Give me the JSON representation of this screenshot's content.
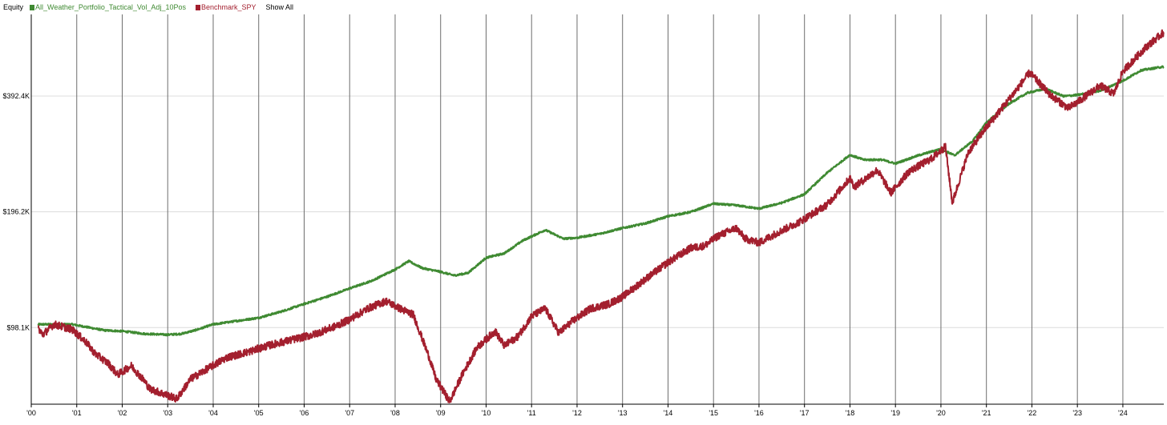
{
  "legend": {
    "title": "Equity",
    "show_all_label": "Show All",
    "entries": [
      {
        "name": "All_Weather_Portfolio_Tactical_Vol_Adj_10Pos",
        "color": "#3f8a32"
      },
      {
        "name": "Benchmark_SPY",
        "color": "#a31f2e"
      }
    ]
  },
  "chart_data": {
    "type": "line",
    "title": "",
    "xlabel": "",
    "ylabel": "",
    "y_scale": "log",
    "ylim": [
      62000,
      640000
    ],
    "xlim": [
      2000.0,
      2024.9
    ],
    "y_ticks": [
      {
        "value": 98100,
        "label": "$98.1K"
      },
      {
        "value": 196200,
        "label": "$196.2K"
      },
      {
        "value": 392400,
        "label": "$392.4K"
      }
    ],
    "x_ticks": [
      {
        "value": 2000,
        "label": "'00"
      },
      {
        "value": 2001,
        "label": "'01"
      },
      {
        "value": 2002,
        "label": "'02"
      },
      {
        "value": 2003,
        "label": "'03"
      },
      {
        "value": 2004,
        "label": "'04"
      },
      {
        "value": 2005,
        "label": "'05"
      },
      {
        "value": 2006,
        "label": "'06"
      },
      {
        "value": 2007,
        "label": "'07"
      },
      {
        "value": 2008,
        "label": "'08"
      },
      {
        "value": 2009,
        "label": "'09"
      },
      {
        "value": 2010,
        "label": "'10"
      },
      {
        "value": 2011,
        "label": "'11"
      },
      {
        "value": 2012,
        "label": "'12"
      },
      {
        "value": 2013,
        "label": "'13"
      },
      {
        "value": 2014,
        "label": "'14"
      },
      {
        "value": 2015,
        "label": "'15"
      },
      {
        "value": 2016,
        "label": "'16"
      },
      {
        "value": 2017,
        "label": "'17"
      },
      {
        "value": 2018,
        "label": "'18"
      },
      {
        "value": 2019,
        "label": "'19"
      },
      {
        "value": 2020,
        "label": "'20"
      },
      {
        "value": 2021,
        "label": "'21"
      },
      {
        "value": 2022,
        "label": "'22"
      },
      {
        "value": 2023,
        "label": "'23"
      },
      {
        "value": 2024,
        "label": "'24"
      }
    ],
    "grid": {
      "vertical": true,
      "horizontal": true
    },
    "legend_position": "top-left",
    "series": [
      {
        "name": "All_Weather_Portfolio_Tactical_Vol_Adj_10Pos",
        "color": "#3f8a32",
        "points": [
          [
            2000.15,
            100000
          ],
          [
            2000.5,
            100000
          ],
          [
            2000.9,
            100000
          ],
          [
            2001.2,
            98500
          ],
          [
            2001.6,
            96500
          ],
          [
            2002.0,
            96000
          ],
          [
            2002.5,
            94500
          ],
          [
            2003.0,
            94000
          ],
          [
            2003.3,
            94500
          ],
          [
            2003.6,
            96500
          ],
          [
            2004.0,
            100000
          ],
          [
            2004.5,
            102000
          ],
          [
            2005.0,
            104000
          ],
          [
            2005.5,
            108000
          ],
          [
            2006.0,
            113000
          ],
          [
            2006.5,
            118000
          ],
          [
            2007.0,
            124000
          ],
          [
            2007.5,
            130000
          ],
          [
            2008.0,
            139000
          ],
          [
            2008.3,
            146000
          ],
          [
            2008.6,
            140000
          ],
          [
            2009.0,
            137000
          ],
          [
            2009.3,
            134000
          ],
          [
            2009.6,
            136000
          ],
          [
            2010.0,
            149000
          ],
          [
            2010.4,
            153000
          ],
          [
            2010.8,
            165000
          ],
          [
            2011.3,
            176000
          ],
          [
            2011.7,
            167000
          ],
          [
            2012.0,
            168000
          ],
          [
            2012.5,
            172000
          ],
          [
            2013.0,
            178000
          ],
          [
            2013.5,
            183000
          ],
          [
            2014.0,
            191000
          ],
          [
            2014.5,
            196000
          ],
          [
            2015.0,
            206000
          ],
          [
            2015.5,
            204000
          ],
          [
            2016.0,
            200000
          ],
          [
            2016.5,
            207000
          ],
          [
            2017.0,
            218000
          ],
          [
            2017.5,
            248000
          ],
          [
            2018.0,
            276000
          ],
          [
            2018.3,
            268000
          ],
          [
            2018.7,
            268000
          ],
          [
            2019.0,
            262000
          ],
          [
            2019.5,
            275000
          ],
          [
            2020.0,
            286000
          ],
          [
            2020.3,
            275000
          ],
          [
            2020.7,
            300000
          ],
          [
            2021.0,
            335000
          ],
          [
            2021.5,
            375000
          ],
          [
            2021.9,
            400000
          ],
          [
            2022.3,
            410000
          ],
          [
            2022.7,
            392000
          ],
          [
            2023.0,
            395000
          ],
          [
            2023.5,
            405000
          ],
          [
            2024.0,
            430000
          ],
          [
            2024.4,
            458000
          ],
          [
            2024.9,
            468000
          ]
        ]
      },
      {
        "name": "Benchmark_SPY",
        "color": "#a31f2e",
        "points": [
          [
            2000.15,
            98000
          ],
          [
            2000.25,
            94000
          ],
          [
            2000.5,
            100000
          ],
          [
            2000.9,
            97000
          ],
          [
            2001.2,
            90000
          ],
          [
            2001.4,
            84000
          ],
          [
            2001.7,
            79000
          ],
          [
            2001.9,
            74000
          ],
          [
            2002.2,
            78000
          ],
          [
            2002.5,
            71000
          ],
          [
            2002.6,
            68000
          ],
          [
            2002.9,
            66000
          ],
          [
            2003.2,
            64000
          ],
          [
            2003.5,
            72000
          ],
          [
            2003.9,
            77000
          ],
          [
            2004.3,
            82000
          ],
          [
            2004.8,
            85000
          ],
          [
            2005.2,
            88000
          ],
          [
            2005.7,
            91000
          ],
          [
            2006.2,
            94000
          ],
          [
            2006.7,
            99000
          ],
          [
            2007.0,
            103000
          ],
          [
            2007.4,
            110000
          ],
          [
            2007.8,
            115000
          ],
          [
            2008.1,
            110000
          ],
          [
            2008.4,
            106000
          ],
          [
            2008.75,
            82000
          ],
          [
            2008.9,
            72000
          ],
          [
            2009.2,
            63000
          ],
          [
            2009.5,
            75000
          ],
          [
            2009.8,
            87000
          ],
          [
            2010.2,
            96000
          ],
          [
            2010.4,
            88000
          ],
          [
            2010.7,
            93000
          ],
          [
            2011.0,
            105000
          ],
          [
            2011.3,
            110000
          ],
          [
            2011.6,
            95000
          ],
          [
            2011.9,
            102000
          ],
          [
            2012.3,
            110000
          ],
          [
            2012.7,
            113000
          ],
          [
            2013.0,
            118000
          ],
          [
            2013.5,
            131000
          ],
          [
            2014.0,
            145000
          ],
          [
            2014.5,
            158000
          ],
          [
            2014.8,
            160000
          ],
          [
            2015.1,
            170000
          ],
          [
            2015.5,
            178000
          ],
          [
            2015.7,
            167000
          ],
          [
            2016.0,
            163000
          ],
          [
            2016.4,
            173000
          ],
          [
            2016.9,
            185000
          ],
          [
            2017.5,
            205000
          ],
          [
            2018.0,
            240000
          ],
          [
            2018.1,
            228000
          ],
          [
            2018.6,
            252000
          ],
          [
            2018.9,
            220000
          ],
          [
            2019.3,
            250000
          ],
          [
            2019.8,
            270000
          ],
          [
            2020.1,
            290000
          ],
          [
            2020.25,
            207000
          ],
          [
            2020.6,
            280000
          ],
          [
            2020.95,
            320000
          ],
          [
            2021.5,
            385000
          ],
          [
            2021.95,
            452000
          ],
          [
            2022.4,
            395000
          ],
          [
            2022.8,
            365000
          ],
          [
            2023.0,
            378000
          ],
          [
            2023.5,
            418000
          ],
          [
            2023.8,
            398000
          ],
          [
            2024.0,
            455000
          ],
          [
            2024.5,
            525000
          ],
          [
            2024.9,
            575000
          ]
        ]
      }
    ]
  }
}
